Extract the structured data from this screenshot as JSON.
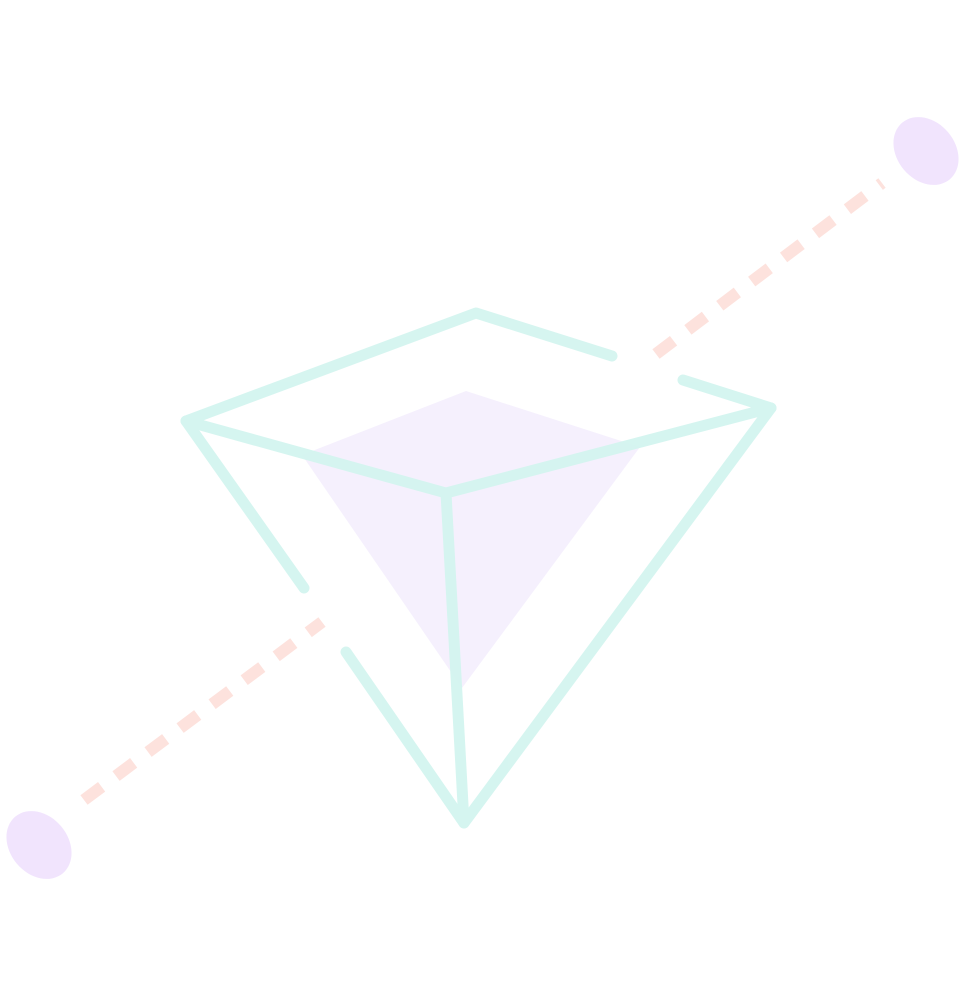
{
  "illustration": {
    "subject": "diamond-with-dashed-orbit",
    "colors": {
      "background": "#ffffff",
      "outline": "#d5f5f0",
      "inner_fill": "#f5f0fd",
      "dash": "#fde2dd",
      "dots": "#f1e4fd"
    }
  }
}
